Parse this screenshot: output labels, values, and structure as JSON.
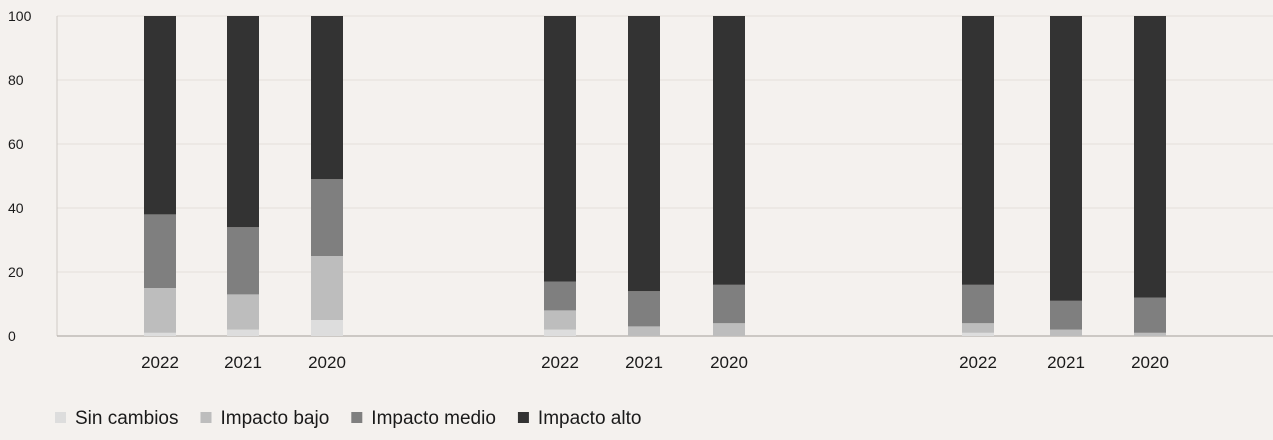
{
  "chart_data": {
    "type": "bar",
    "stacked": true,
    "ylim": [
      0,
      100
    ],
    "yticks": [
      0,
      20,
      40,
      60,
      80,
      100
    ],
    "grid": true,
    "legend_position": "bottom-left",
    "groups": [
      {
        "categories": [
          "2022",
          "2021",
          "2020"
        ],
        "series": [
          {
            "name": "Sin cambios",
            "values": [
              1,
              2,
              5
            ]
          },
          {
            "name": "Impacto bajo",
            "values": [
              14,
              11,
              20
            ]
          },
          {
            "name": "Impacto medio",
            "values": [
              23,
              21,
              24
            ]
          },
          {
            "name": "Impacto alto",
            "values": [
              62,
              66,
              51
            ]
          }
        ]
      },
      {
        "categories": [
          "2022",
          "2021",
          "2020"
        ],
        "series": [
          {
            "name": "Sin cambios",
            "values": [
              2,
              0,
              0
            ]
          },
          {
            "name": "Impacto bajo",
            "values": [
              6,
              3,
              4
            ]
          },
          {
            "name": "Impacto medio",
            "values": [
              9,
              11,
              12
            ]
          },
          {
            "name": "Impacto alto",
            "values": [
              83,
              86,
              84
            ]
          }
        ]
      },
      {
        "categories": [
          "2022",
          "2021",
          "2020"
        ],
        "series": [
          {
            "name": "Sin cambios",
            "values": [
              1,
              0,
              0
            ]
          },
          {
            "name": "Impacto bajo",
            "values": [
              3,
              2,
              1
            ]
          },
          {
            "name": "Impacto medio",
            "values": [
              12,
              9,
              11
            ]
          },
          {
            "name": "Impacto alto",
            "values": [
              84,
              89,
              88
            ]
          }
        ]
      }
    ],
    "legend": [
      {
        "name": "Sin cambios",
        "color": "#dddddd"
      },
      {
        "name": "Impacto bajo",
        "color": "#bdbdbd"
      },
      {
        "name": "Impacto medio",
        "color": "#7f7f7f"
      },
      {
        "name": "Impacto alto",
        "color": "#333333"
      }
    ],
    "colors": [
      "#dddddd",
      "#bdbdbd",
      "#7f7f7f",
      "#333333"
    ]
  }
}
